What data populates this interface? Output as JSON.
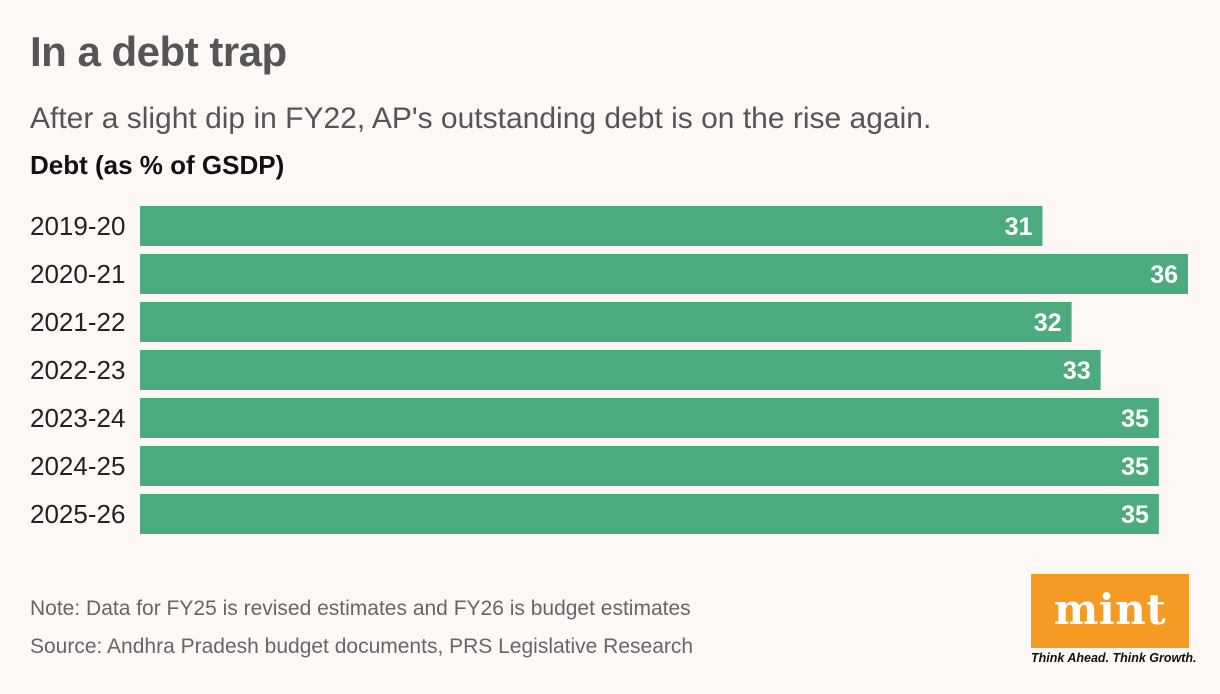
{
  "header": {
    "title": "In a debt trap",
    "subtitle": "After a slight dip in FY22, AP's outstanding debt is on the rise again.",
    "axis_title": "Debt (as % of GSDP)"
  },
  "footer": {
    "note": "Note: Data for FY25 is revised estimates and FY26 is budget estimates",
    "source": "Source: Andhra Pradesh budget documents, PRS Legislative Research"
  },
  "logo": {
    "word": "mint",
    "tagline": "Think Ahead. Think Growth.",
    "color": "#f59a23"
  },
  "chart_data": {
    "type": "bar",
    "orientation": "horizontal",
    "title": "In a debt trap",
    "subtitle": "After a slight dip in FY22, AP's outstanding debt is on the rise again.",
    "ylabel": "Debt (as % of GSDP)",
    "categories": [
      "2019-20",
      "2020-21",
      "2021-22",
      "2022-23",
      "2023-24",
      "2024-25",
      "2025-26"
    ],
    "values": [
      31,
      36,
      32,
      33,
      35,
      35,
      35
    ],
    "xlim": [
      0,
      36
    ],
    "bar_color": "#4caa7f",
    "label_color": "#ffffff"
  }
}
